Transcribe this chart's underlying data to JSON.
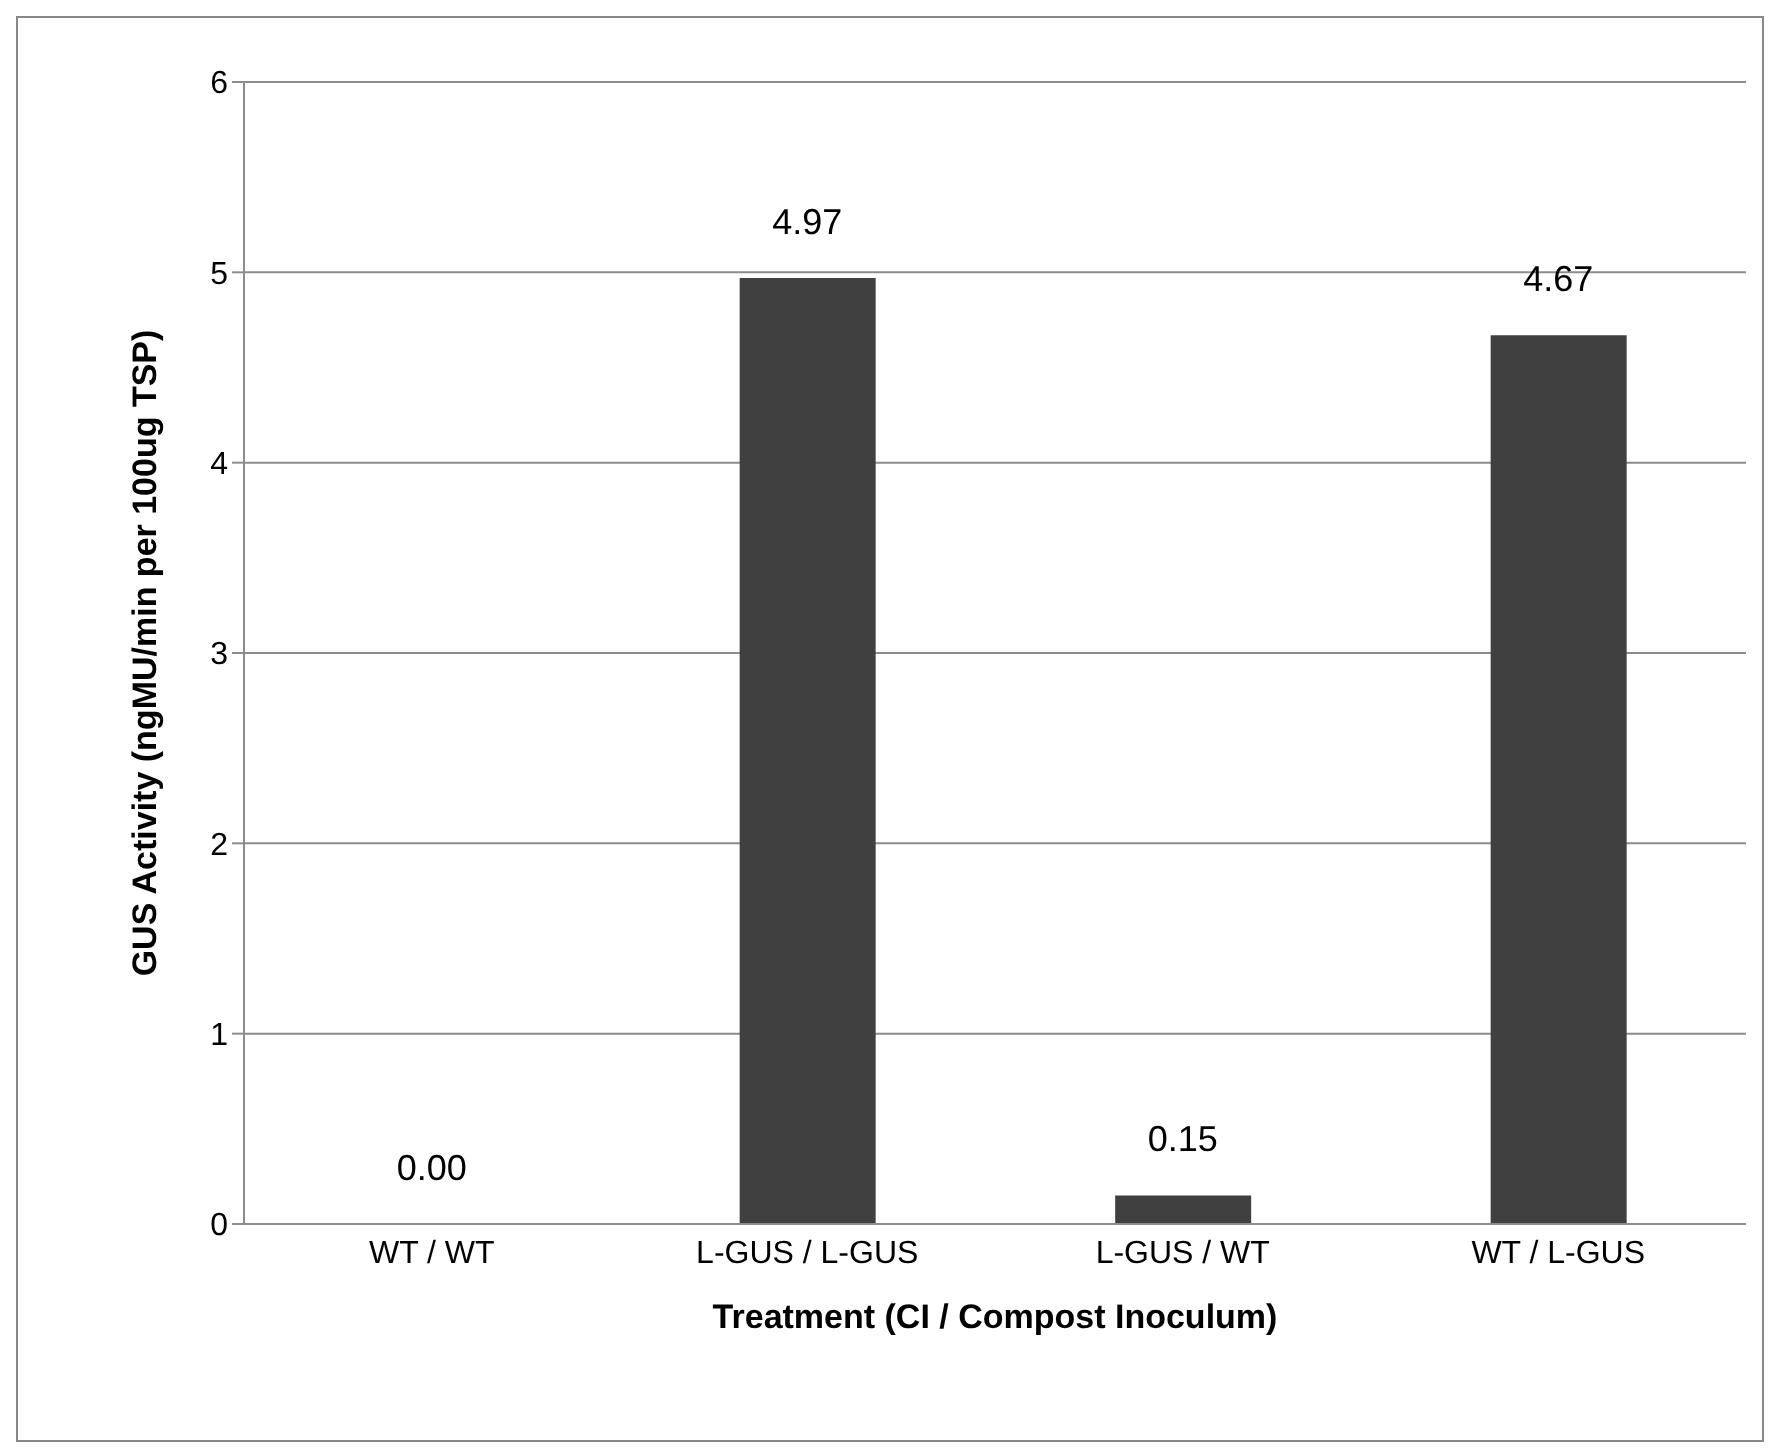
{
  "chart_data": {
    "type": "bar",
    "xlabel": "Treatment (CI / Compost Inoculum)",
    "ylabel": "GUS Activity (ngMU/min per 100ug TSP)",
    "categories": [
      "WT / WT",
      "L-GUS / L-GUS",
      "L-GUS / WT",
      "WT / L-GUS"
    ],
    "values": [
      0,
      4.97,
      0.15,
      4.67
    ],
    "value_labels": [
      "0.00",
      "4.97",
      "0.15",
      "4.67"
    ],
    "color": "#404040",
    "ylim": [
      0,
      6
    ],
    "yticks": [
      0,
      1,
      2,
      3,
      4,
      5,
      6
    ],
    "grid": "y"
  }
}
